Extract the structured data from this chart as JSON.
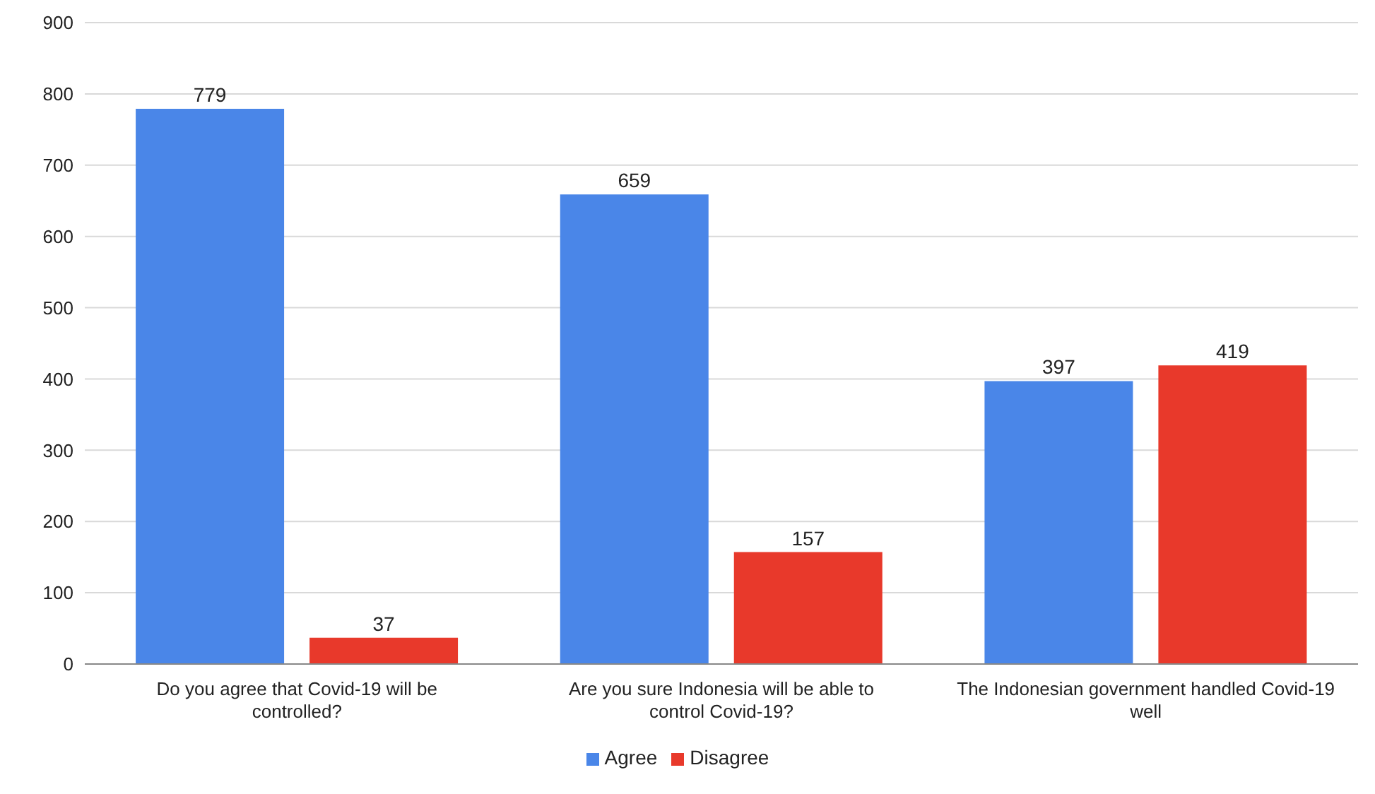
{
  "chart_data": {
    "type": "bar",
    "categories": [
      "Do you agree that Covid-19 will be controlled?",
      "Are you sure Indonesia will be able to control Covid-19?",
      "The Indonesian government handled Covid-19 well"
    ],
    "series": [
      {
        "name": "Agree",
        "color": "#4a86e8",
        "values": [
          779,
          659,
          397
        ]
      },
      {
        "name": "Disagree",
        "color": "#e8392b",
        "values": [
          37,
          157,
          419
        ]
      }
    ],
    "ylim": [
      0,
      900
    ],
    "yticks": [
      0,
      100,
      200,
      300,
      400,
      500,
      600,
      700,
      800,
      900
    ],
    "grid": "y",
    "legend": "bottom",
    "data_labels": true
  }
}
